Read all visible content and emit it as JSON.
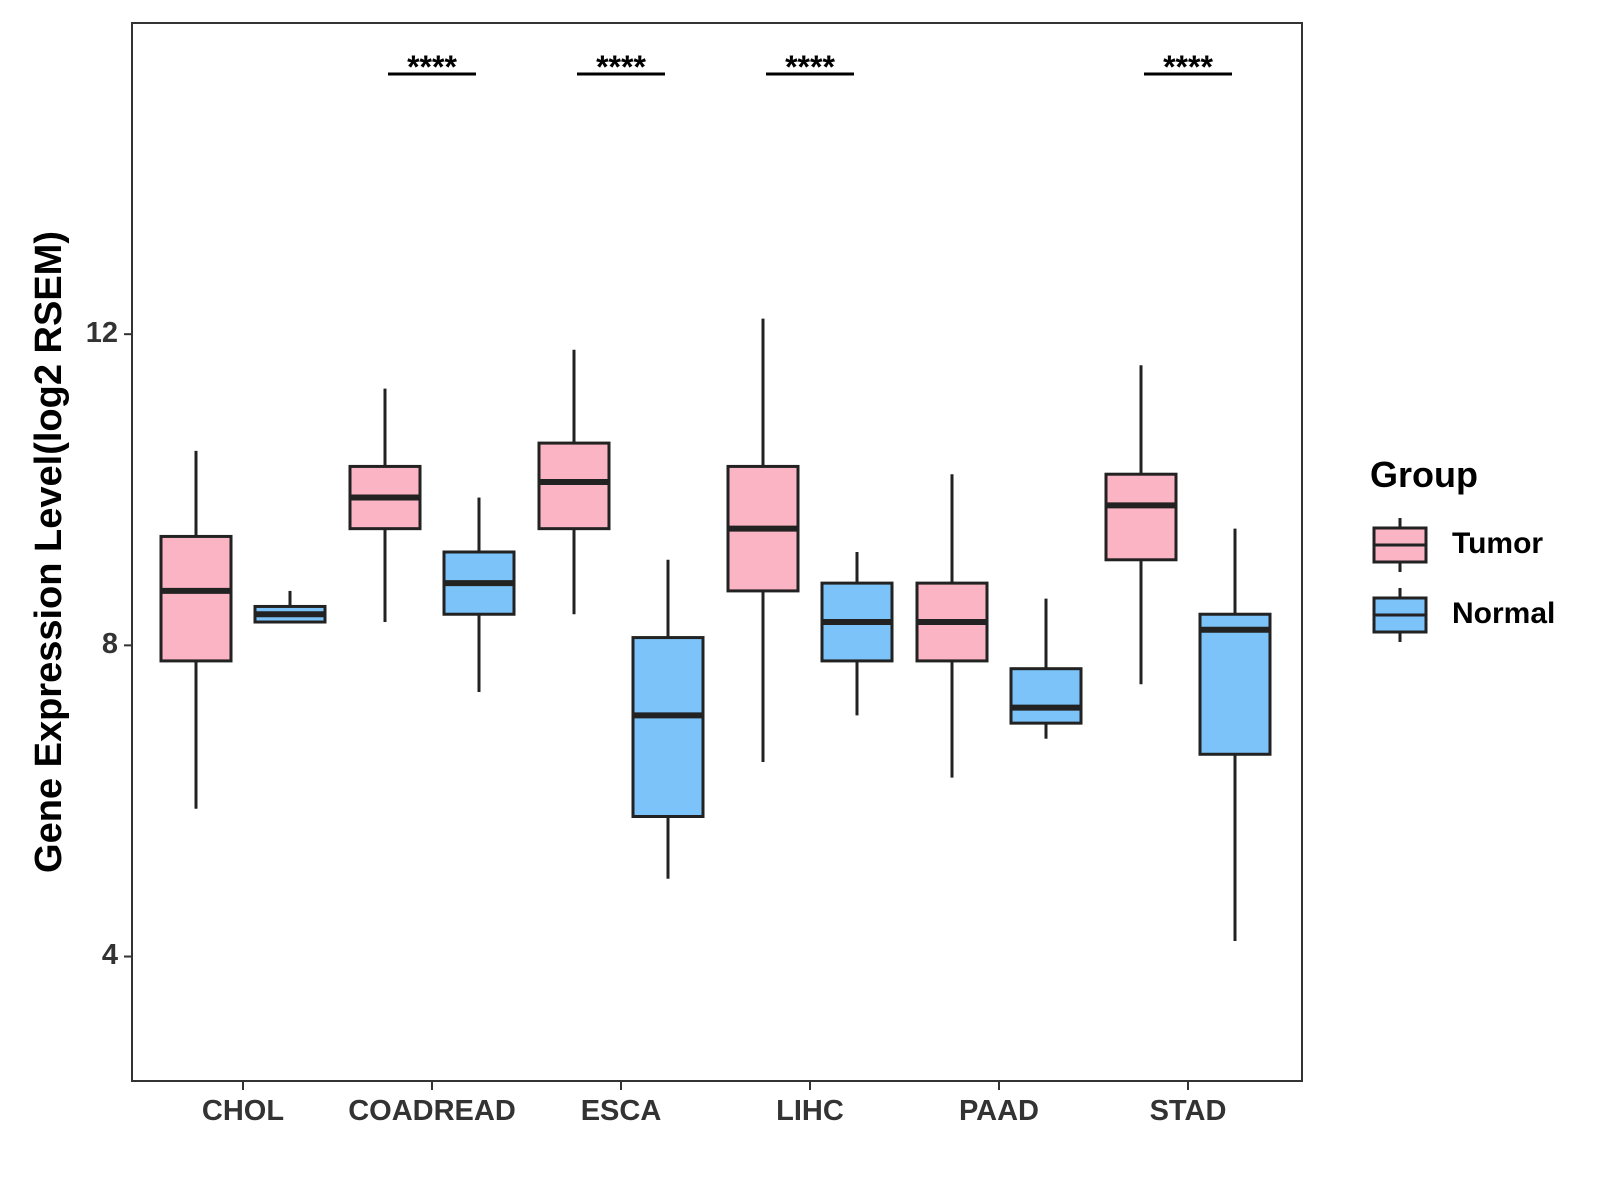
{
  "chart_data": {
    "type": "boxplot",
    "ylabel": "Gene Expression Level(log2 RSEM)",
    "xlabel": "",
    "ylim": [
      2.4,
      16.0
    ],
    "yticks": [
      4,
      8,
      12
    ],
    "ytick_labels": [
      "4",
      "8",
      "12"
    ],
    "categories": [
      "CHOL",
      "COADREAD",
      "ESCA",
      "LIHC",
      "PAAD",
      "STAD"
    ],
    "legend": {
      "title": "Group",
      "position": "right",
      "entries": [
        "Tumor",
        "Normal"
      ]
    },
    "colors": {
      "Tumor": "#fbb4c4",
      "Normal": "#7bc3f8",
      "stroke": "#222222",
      "panel_border": "#333333"
    },
    "series": [
      {
        "name": "Tumor",
        "boxes": [
          {
            "category": "CHOL",
            "whisker_low": 5.9,
            "q1": 7.8,
            "median": 8.7,
            "q3": 9.4,
            "whisker_high": 10.5
          },
          {
            "category": "COADREAD",
            "whisker_low": 8.3,
            "q1": 9.5,
            "median": 9.9,
            "q3": 10.3,
            "whisker_high": 11.3
          },
          {
            "category": "ESCA",
            "whisker_low": 8.4,
            "q1": 9.5,
            "median": 10.1,
            "q3": 10.6,
            "whisker_high": 11.8
          },
          {
            "category": "LIHC",
            "whisker_low": 6.5,
            "q1": 8.7,
            "median": 9.5,
            "q3": 10.3,
            "whisker_high": 12.2
          },
          {
            "category": "PAAD",
            "whisker_low": 6.3,
            "q1": 7.8,
            "median": 8.3,
            "q3": 8.8,
            "whisker_high": 10.2
          },
          {
            "category": "STAD",
            "whisker_low": 7.5,
            "q1": 9.1,
            "median": 9.8,
            "q3": 10.2,
            "whisker_high": 11.6
          }
        ]
      },
      {
        "name": "Normal",
        "boxes": [
          {
            "category": "CHOL",
            "whisker_low": 8.3,
            "q1": 8.3,
            "median": 8.4,
            "q3": 8.5,
            "whisker_high": 8.7
          },
          {
            "category": "COADREAD",
            "whisker_low": 7.4,
            "q1": 8.4,
            "median": 8.8,
            "q3": 9.2,
            "whisker_high": 9.9
          },
          {
            "category": "ESCA",
            "whisker_low": 5.0,
            "q1": 5.8,
            "median": 7.1,
            "q3": 8.1,
            "whisker_high": 9.1
          },
          {
            "category": "LIHC",
            "whisker_low": 7.1,
            "q1": 7.8,
            "median": 8.3,
            "q3": 8.8,
            "whisker_high": 9.2
          },
          {
            "category": "PAAD",
            "whisker_low": 6.8,
            "q1": 7.0,
            "median": 7.2,
            "q3": 7.7,
            "whisker_high": 8.6
          },
          {
            "category": "STAD",
            "whisker_low": 4.2,
            "q1": 6.6,
            "median": 8.2,
            "q3": 8.4,
            "whisker_high": 9.5
          }
        ]
      }
    ],
    "significance": [
      {
        "category": "COADREAD",
        "label": "****"
      },
      {
        "category": "ESCA",
        "label": "****"
      },
      {
        "category": "LIHC",
        "label": "****"
      },
      {
        "category": "STAD",
        "label": "****"
      }
    ]
  }
}
